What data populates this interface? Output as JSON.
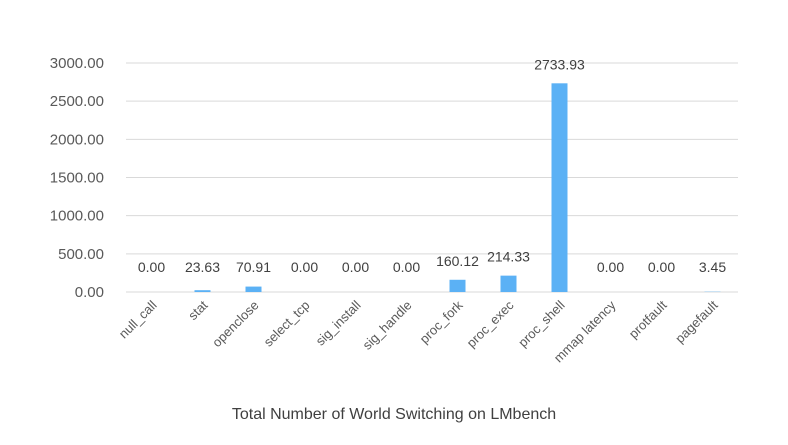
{
  "caption": "Total Number of World Switching on LMbench",
  "chart_data": {
    "type": "bar",
    "categories": [
      "null_call",
      "stat",
      "openclose",
      "select_tcp",
      "sig_install",
      "sig_handle",
      "proc_fork",
      "proc_exec",
      "proc_shell",
      "mmap latency",
      "protfault",
      "pagefault"
    ],
    "values": [
      0.0,
      23.63,
      70.91,
      0.0,
      0.0,
      0.0,
      160.12,
      214.33,
      2733.93,
      0.0,
      0.0,
      3.45
    ],
    "data_labels": [
      "0.00",
      "23.63",
      "70.91",
      "0.00",
      "0.00",
      "0.00",
      "160.12",
      "214.33",
      "2733.93",
      "0.00",
      "0.00",
      "3.45"
    ],
    "y_ticks": [
      0,
      500,
      1000,
      1500,
      2000,
      2500,
      3000
    ],
    "y_tick_labels": [
      "0.00",
      "500.00",
      "1000.00",
      "1500.00",
      "2000.00",
      "2500.00",
      "3000.00"
    ],
    "ylim": [
      0,
      3000
    ],
    "grid": true,
    "legend": "none",
    "bar_color": "#5bb1f5",
    "grid_color": "#d9d9d9"
  }
}
